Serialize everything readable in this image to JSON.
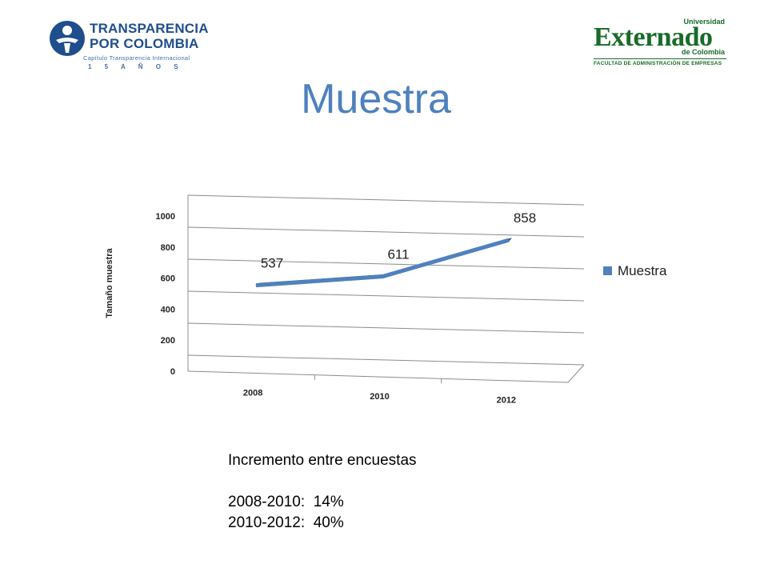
{
  "logos": {
    "left": {
      "line1": "TRANSPARENCIA",
      "line2": "POR COLOMBIA",
      "subtitle": "Capítulo Transparencia Internacional",
      "years": "1 5   A Ñ O S"
    },
    "right": {
      "top": "Universidad",
      "name": "Externado",
      "place": "de Colombia",
      "faculty": "FACULTAD DE ADMINISTRACIÓN DE EMPRESAS"
    }
  },
  "page_title": "Muestra",
  "chart_data": {
    "type": "line",
    "style": "3d",
    "categories": [
      "2008",
      "2010",
      "2012"
    ],
    "series": [
      {
        "name": "Muestra",
        "values": [
          537,
          611,
          858
        ],
        "color": "#4f81bd"
      }
    ],
    "data_labels": [
      "537",
      "611",
      "858"
    ],
    "ylabel": "Tamaño muestra",
    "yticks": [
      "0",
      "200",
      "400",
      "600",
      "800",
      "1000"
    ],
    "ylim": [
      0,
      1000
    ],
    "grid": true,
    "legend": {
      "position": "right",
      "label": "Muestra"
    }
  },
  "notes": {
    "heading": "Incremento entre encuestas",
    "lines": [
      "2008-2010:  14%",
      "2010-2012:  40%"
    ]
  }
}
